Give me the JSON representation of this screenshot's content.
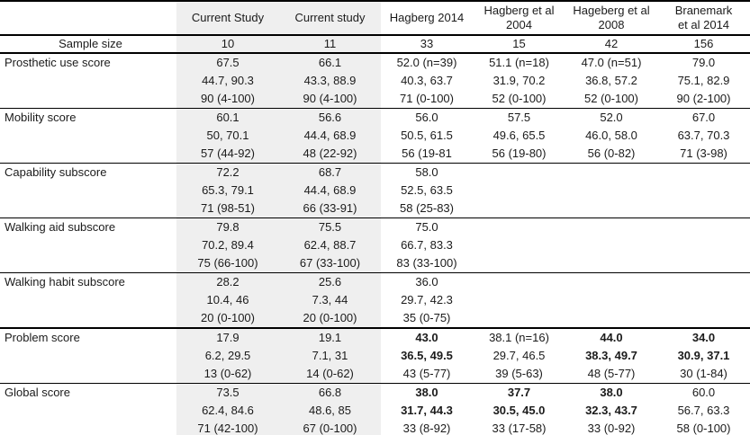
{
  "colors": {
    "shade": "#efefef",
    "rule": "#000000",
    "text": "#1b1b1b"
  },
  "table": {
    "corner_label": "",
    "columns": [
      {
        "lines": [
          "Current Study"
        ],
        "shaded": true
      },
      {
        "lines": [
          "Current study"
        ],
        "shaded": true
      },
      {
        "lines": [
          "Hagberg 2014"
        ],
        "shaded": false
      },
      {
        "lines": [
          "Hagberg et al",
          "2004"
        ],
        "shaded": false
      },
      {
        "lines": [
          "Hageberg et al",
          "2008"
        ],
        "shaded": false
      },
      {
        "lines": [
          "Branemark",
          "et al 2014"
        ],
        "shaded": false
      }
    ],
    "sample_size": {
      "label": "Sample size",
      "values": [
        "10",
        "11",
        "33",
        "15",
        "42",
        "156"
      ]
    },
    "groups": [
      {
        "label": "Prosthetic use score",
        "rows": [
          [
            "67.5",
            "66.1",
            "52.0 (n=39)",
            "51.1 (n=18)",
            "47.0 (n=51)",
            "79.0"
          ],
          [
            "44.7, 90.3",
            "43.3, 88.9",
            "40.3, 63.7",
            "31.9, 70.2",
            "36.8, 57.2",
            "75.1, 82.9"
          ],
          [
            "90 (4-100)",
            "90 (4-100)",
            "71 (0-100)",
            "52 (0-100)",
            "52 (0-100)",
            "90 (2-100)"
          ]
        ]
      },
      {
        "label": "Mobility score",
        "rows": [
          [
            "60.1",
            "56.6",
            "56.0",
            "57.5",
            "52.0",
            "67.0"
          ],
          [
            "50, 70.1",
            "44.4, 68.9",
            "50.5, 61.5",
            "49.6, 65.5",
            "46.0, 58.0",
            "63.7, 70.3"
          ],
          [
            "57 (44-92)",
            "48 (22-92)",
            "56 (19-81",
            "56 (19-80)",
            "56 (0-82)",
            "71 (3-98)"
          ]
        ]
      },
      {
        "label": "Capability subscore",
        "rows": [
          [
            "72.2",
            "68.7",
            "58.0",
            "",
            "",
            ""
          ],
          [
            "65.3, 79.1",
            "44.4, 68.9",
            "52.5, 63.5",
            "",
            "",
            ""
          ],
          [
            "71 (98-51)",
            "66 (33-91)",
            "58 (25-83)",
            "",
            "",
            ""
          ]
        ]
      },
      {
        "label": "Walking aid subscore",
        "rows": [
          [
            "79.8",
            "75.5",
            "75.0",
            "",
            "",
            ""
          ],
          [
            "70.2, 89.4",
            "62.4, 88.7",
            "66.7, 83.3",
            "",
            "",
            ""
          ],
          [
            "75 (66-100)",
            "67 (33-100)",
            "83 (33-100)",
            "",
            "",
            ""
          ]
        ]
      },
      {
        "label": "Walking habit subscore",
        "thick_bottom": true,
        "rows": [
          [
            "28.2",
            "25.6",
            "36.0",
            "",
            "",
            ""
          ],
          [
            "10.4, 46",
            "7.3, 44",
            "29.7, 42.3",
            "",
            "",
            ""
          ],
          [
            "20 (0-100)",
            "20 (0-100)",
            "35 (0-75)",
            "",
            "",
            ""
          ]
        ]
      },
      {
        "label": "Problem score",
        "rows": [
          [
            "17.9",
            "19.1",
            "43.0",
            "38.1 (n=16)",
            "44.0",
            "34.0"
          ],
          [
            "6.2, 29.5",
            "7.1, 31",
            "36.5, 49.5",
            "29.7, 46.5",
            "38.3, 49.7",
            "30.9, 37.1"
          ],
          [
            "13 (0-62)",
            "14 (0-62)",
            "43 (5-77)",
            "39 (5-63)",
            "48 (5-77)",
            "30 (1-84)"
          ]
        ],
        "bold": [
          [
            0,
            0,
            1,
            0,
            1,
            1
          ],
          [
            0,
            0,
            1,
            0,
            1,
            1
          ],
          [
            0,
            0,
            0,
            0,
            0,
            0
          ]
        ]
      },
      {
        "label": "Global score",
        "rows": [
          [
            "73.5",
            "66.8",
            "38.0",
            "37.7",
            "38.0",
            "60.0"
          ],
          [
            "62.4, 84.6",
            "48.6, 85",
            "31.7, 44.3",
            "30.5, 45.0",
            "32.3, 43.7",
            "56.7, 63.3"
          ],
          [
            "71 (42-100)",
            "67 (0-100)",
            "33 (8-92)",
            "33 (17-58)",
            "33 (0-92)",
            "58 (0-100)"
          ]
        ],
        "bold": [
          [
            0,
            0,
            1,
            1,
            1,
            0
          ],
          [
            0,
            0,
            1,
            1,
            1,
            0
          ],
          [
            0,
            0,
            0,
            0,
            0,
            0
          ]
        ]
      }
    ]
  }
}
